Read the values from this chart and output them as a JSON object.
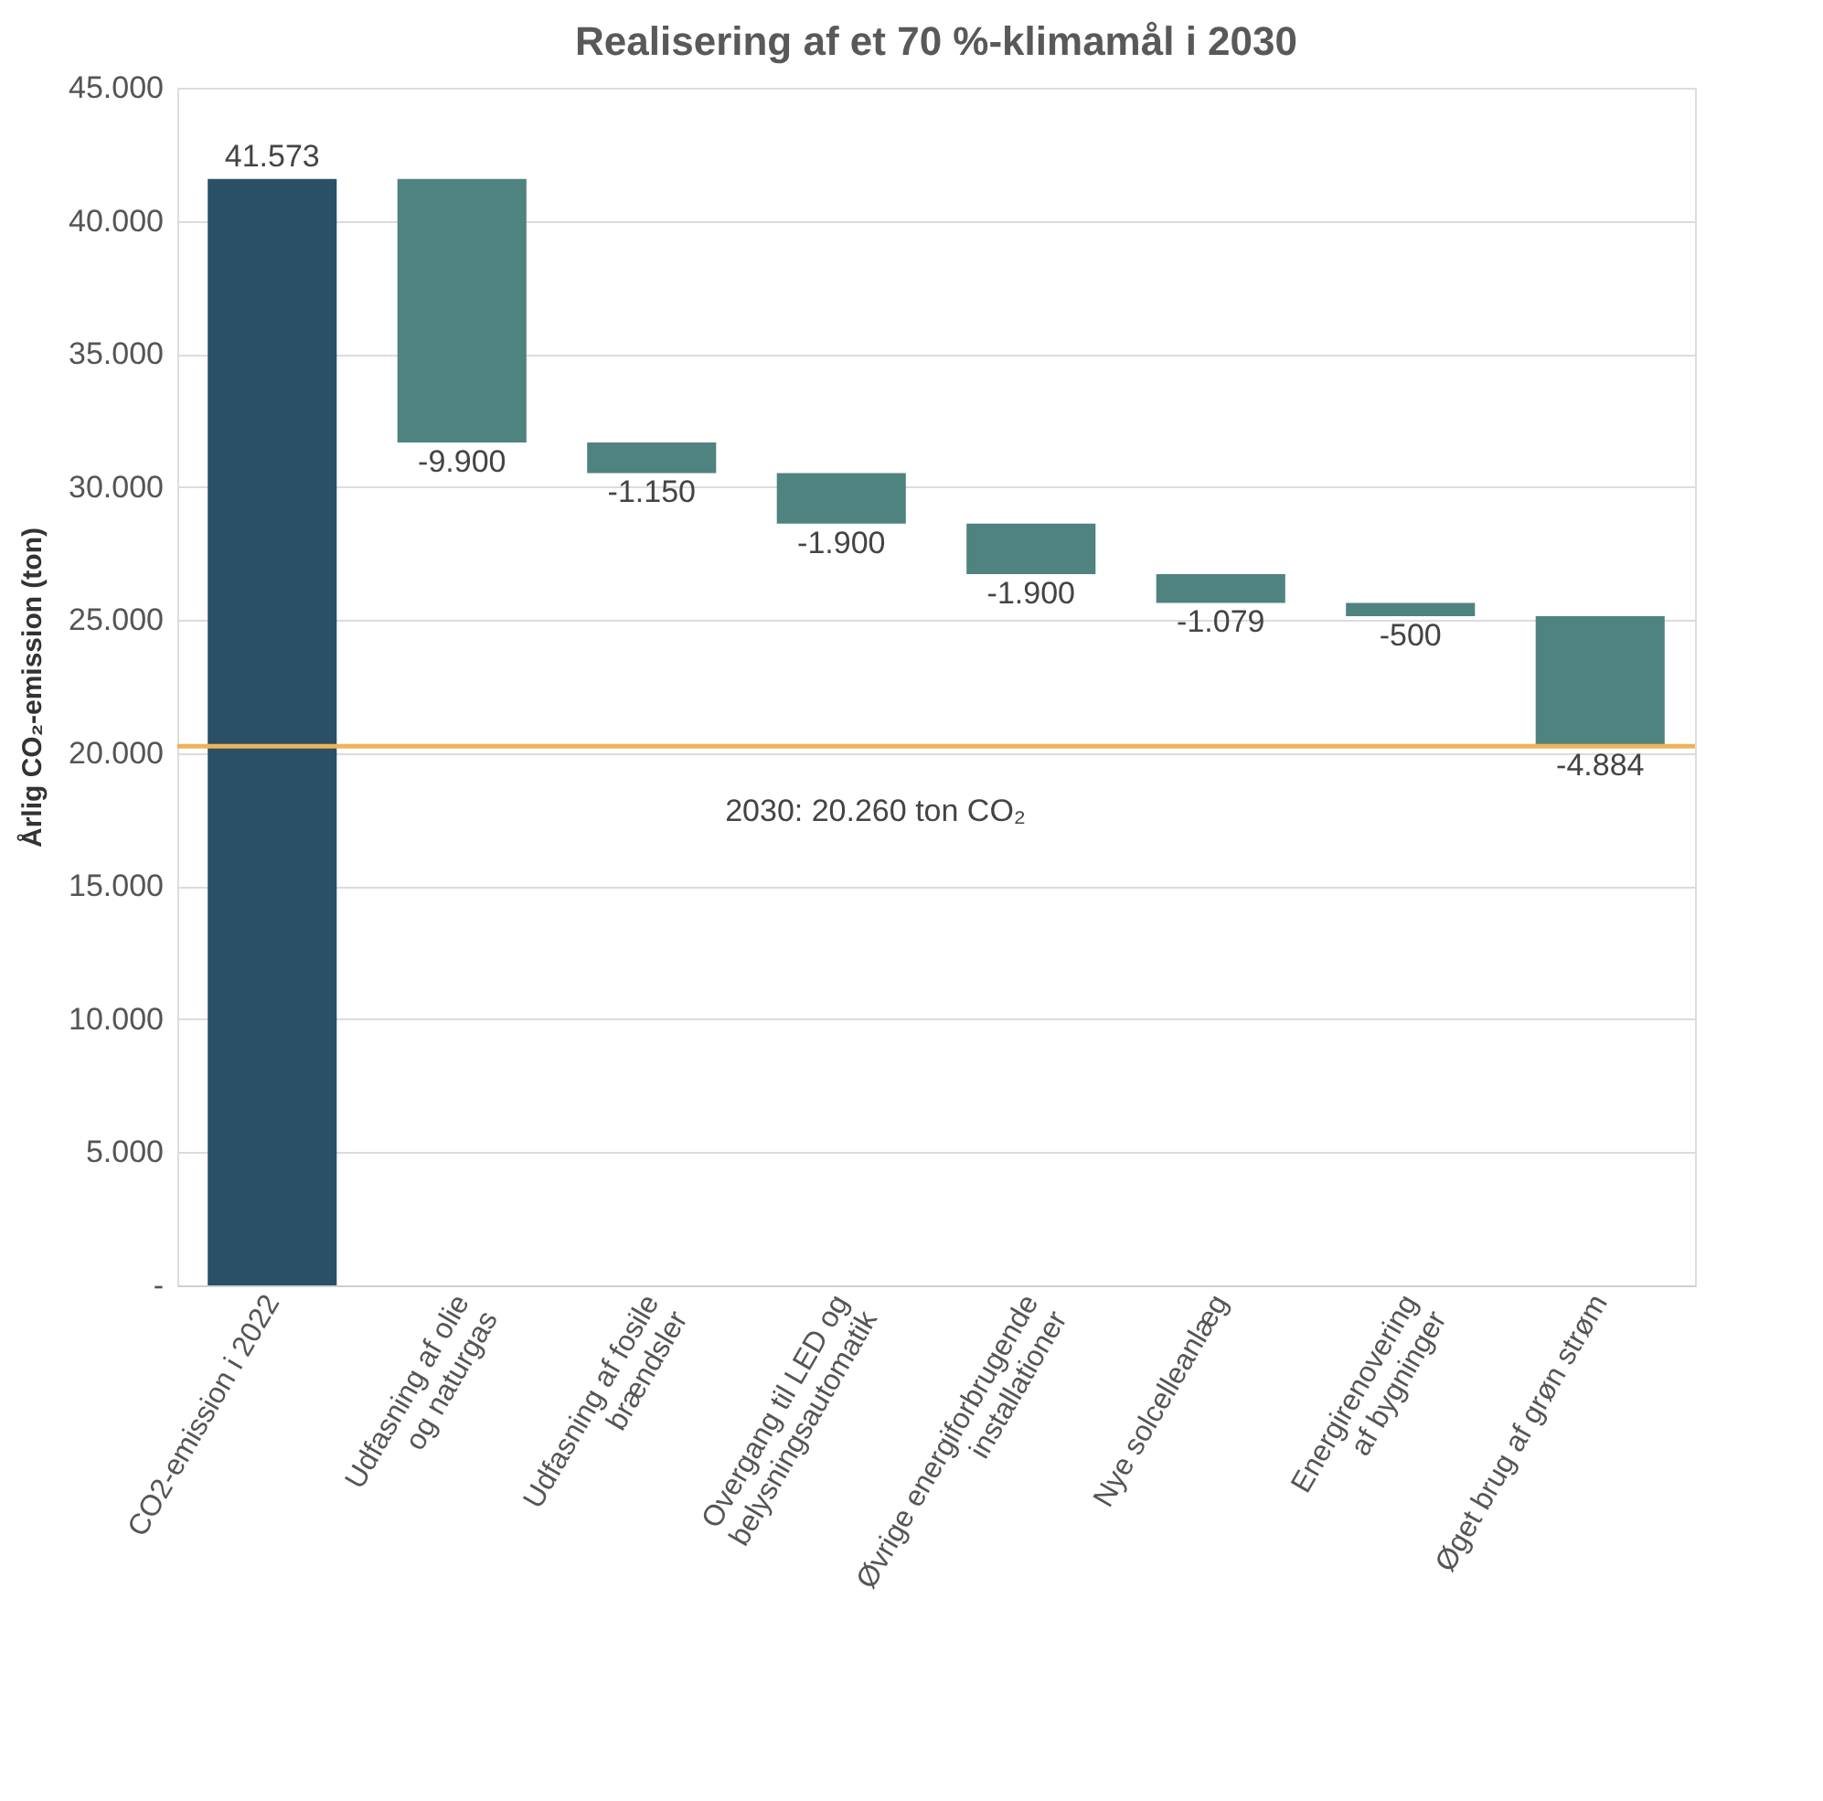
{
  "chart_data": {
    "type": "bar",
    "title": "Realisering af et 70 %-klimamål i 2030",
    "ylabel": "Årlig CO₂-emission (ton)",
    "categories": [
      "CO2-emission i 2022",
      "Udfasning af olie\nog naturgas",
      "Udfasning af fosile\nbrændsler",
      "Overgang til LED og\nbelysningsautomatik",
      "Øvrige energiforbrugende\ninstallationer",
      "Nye solcelleanlæg",
      "Energirenovering\naf bygninger",
      "Øget brug af grøn strøm"
    ],
    "values": [
      41573,
      -9900,
      -1150,
      -1900,
      -1900,
      -1079,
      -500,
      -4884
    ],
    "base": [
      0,
      41573,
      31673,
      30523,
      28623,
      26723,
      25644,
      25144
    ],
    "colors": [
      "#2a5066",
      "#4f837f",
      "#4f837f",
      "#4f837f",
      "#4f837f",
      "#4f837f",
      "#4f837f",
      "#4f837f"
    ],
    "value_labels": [
      "41.573",
      "-9.900",
      "-1.150",
      "-1.900",
      "-1.900",
      "-1.079",
      "-500",
      "-4.884"
    ],
    "ylim": [
      0,
      45000
    ],
    "yticks": [
      {
        "value": 0,
        "label": "-"
      },
      {
        "value": 5000,
        "label": "5.000"
      },
      {
        "value": 10000,
        "label": "10.000"
      },
      {
        "value": 15000,
        "label": "15.000"
      },
      {
        "value": 20000,
        "label": "20.000"
      },
      {
        "value": 25000,
        "label": "25.000"
      },
      {
        "value": 30000,
        "label": "30.000"
      },
      {
        "value": 35000,
        "label": "35.000"
      },
      {
        "value": 40000,
        "label": "40.000"
      },
      {
        "value": 45000,
        "label": "45.000"
      }
    ],
    "grid": "y",
    "ref_lines": [
      {
        "axis": "y",
        "value": 20260,
        "label": "2030: 20.260 ton CO₂",
        "color": "#f0b35a"
      }
    ]
  }
}
